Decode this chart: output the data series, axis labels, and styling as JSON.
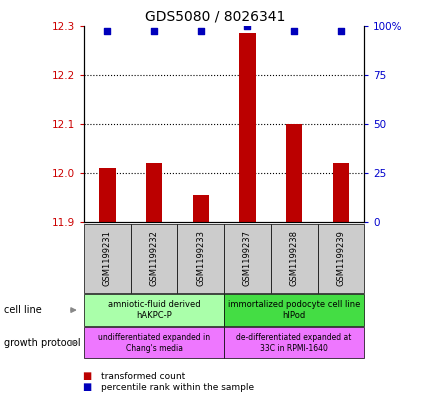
{
  "title": "GDS5080 / 8026341",
  "samples": [
    "GSM1199231",
    "GSM1199232",
    "GSM1199233",
    "GSM1199237",
    "GSM1199238",
    "GSM1199239"
  ],
  "transformed_count": [
    12.01,
    12.02,
    11.955,
    12.285,
    12.1,
    12.02
  ],
  "percentile_rank": [
    97,
    97,
    97,
    100,
    97,
    97
  ],
  "ylim_left": [
    11.9,
    12.3
  ],
  "ylim_right": [
    0,
    100
  ],
  "yticks_left": [
    11.9,
    12.0,
    12.1,
    12.2,
    12.3
  ],
  "yticks_right": [
    0,
    25,
    50,
    75,
    100
  ],
  "cell_line_labels": [
    {
      "text": "amniotic-fluid derived\nhAKPC-P",
      "start": 0,
      "end": 3,
      "color": "#aaffaa"
    },
    {
      "text": "immortalized podocyte cell line\nhIPod",
      "start": 3,
      "end": 6,
      "color": "#44dd44"
    }
  ],
  "growth_protocol_labels": [
    {
      "text": "undifferentiated expanded in\nChang's media",
      "start": 0,
      "end": 3,
      "color": "#ee77ff"
    },
    {
      "text": "de-differentiated expanded at\n33C in RPMI-1640",
      "start": 3,
      "end": 6,
      "color": "#ee77ff"
    }
  ],
  "bar_color": "#bb0000",
  "dot_color": "#0000bb",
  "bar_width": 0.35,
  "base_value": 11.9,
  "tick_color_left": "#cc0000",
  "tick_color_right": "#0000cc",
  "sample_box_color": "#cccccc",
  "title_fontsize": 10
}
